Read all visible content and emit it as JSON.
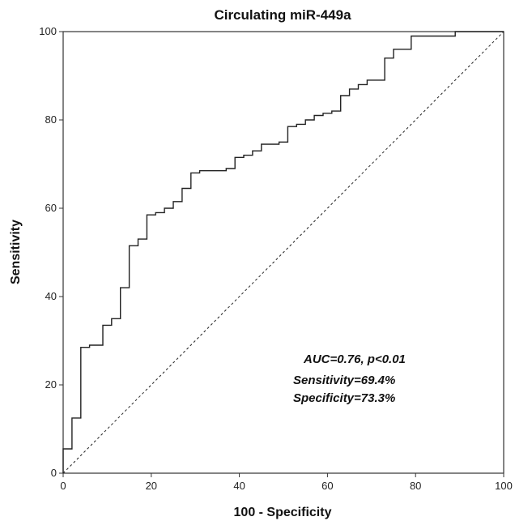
{
  "chart_data": {
    "type": "line",
    "title": "Circulating miR-449a",
    "xlabel": "100 - Specificity",
    "ylabel": "Sensitivity",
    "xlim": [
      0,
      100
    ],
    "ylim": [
      0,
      100
    ],
    "xticks": [
      "0",
      "20",
      "40",
      "60",
      "80",
      "100"
    ],
    "yticks": [
      "0",
      "20",
      "40",
      "60",
      "80",
      "100"
    ],
    "grid": false,
    "series": [
      {
        "name": "",
        "style": "step",
        "color": "#222222",
        "x": [
          0,
          0,
          2,
          2,
          4,
          4,
          6,
          6,
          9,
          9,
          11,
          11,
          13,
          13,
          15,
          15,
          17,
          17,
          19,
          19,
          21,
          21,
          23,
          23,
          25,
          25,
          27,
          27,
          29,
          29,
          31,
          31,
          33,
          33,
          35,
          35,
          37,
          37,
          39,
          39,
          41,
          41,
          43,
          43,
          45,
          45,
          47,
          47,
          49,
          49,
          51,
          51,
          53,
          53,
          55,
          55,
          57,
          57,
          59,
          59,
          61,
          61,
          63,
          63,
          65,
          65,
          67,
          67,
          69,
          69,
          71,
          71,
          73,
          73,
          75,
          75,
          77,
          77,
          79,
          79,
          81,
          81,
          83,
          83,
          85,
          85,
          87,
          87,
          89,
          89,
          100
        ],
        "y": [
          0,
          5.5,
          5.5,
          12.5,
          12.5,
          28.5,
          28.5,
          29,
          29,
          33.5,
          33.5,
          35,
          35,
          42,
          42,
          51.5,
          51.5,
          53,
          53,
          58.5,
          58.5,
          59,
          59,
          60,
          60,
          61.5,
          61.5,
          64.5,
          64.5,
          68,
          68,
          68.5,
          68.5,
          68.5,
          68.5,
          68.5,
          68.5,
          69,
          69,
          71.5,
          71.5,
          72,
          72,
          73,
          73,
          74.5,
          74.5,
          74.5,
          74.5,
          75,
          75,
          78.5,
          78.5,
          79,
          79,
          80,
          80,
          81,
          81,
          81.5,
          81.5,
          82,
          82,
          85.5,
          85.5,
          87,
          87,
          88,
          88,
          89,
          89,
          89,
          89,
          94,
          94,
          96,
          96,
          96,
          96,
          99,
          99,
          99,
          99,
          99,
          99,
          99,
          99,
          99,
          99,
          100,
          100
        ]
      },
      {
        "name": "",
        "style": "dashed",
        "color": "#222222",
        "x": [
          0,
          100
        ],
        "y": [
          0,
          100
        ]
      }
    ],
    "annotations": [
      "AUC=0.76, p<0.01",
      "Sensitivity=69.4%",
      "Specificity=73.3%"
    ]
  }
}
